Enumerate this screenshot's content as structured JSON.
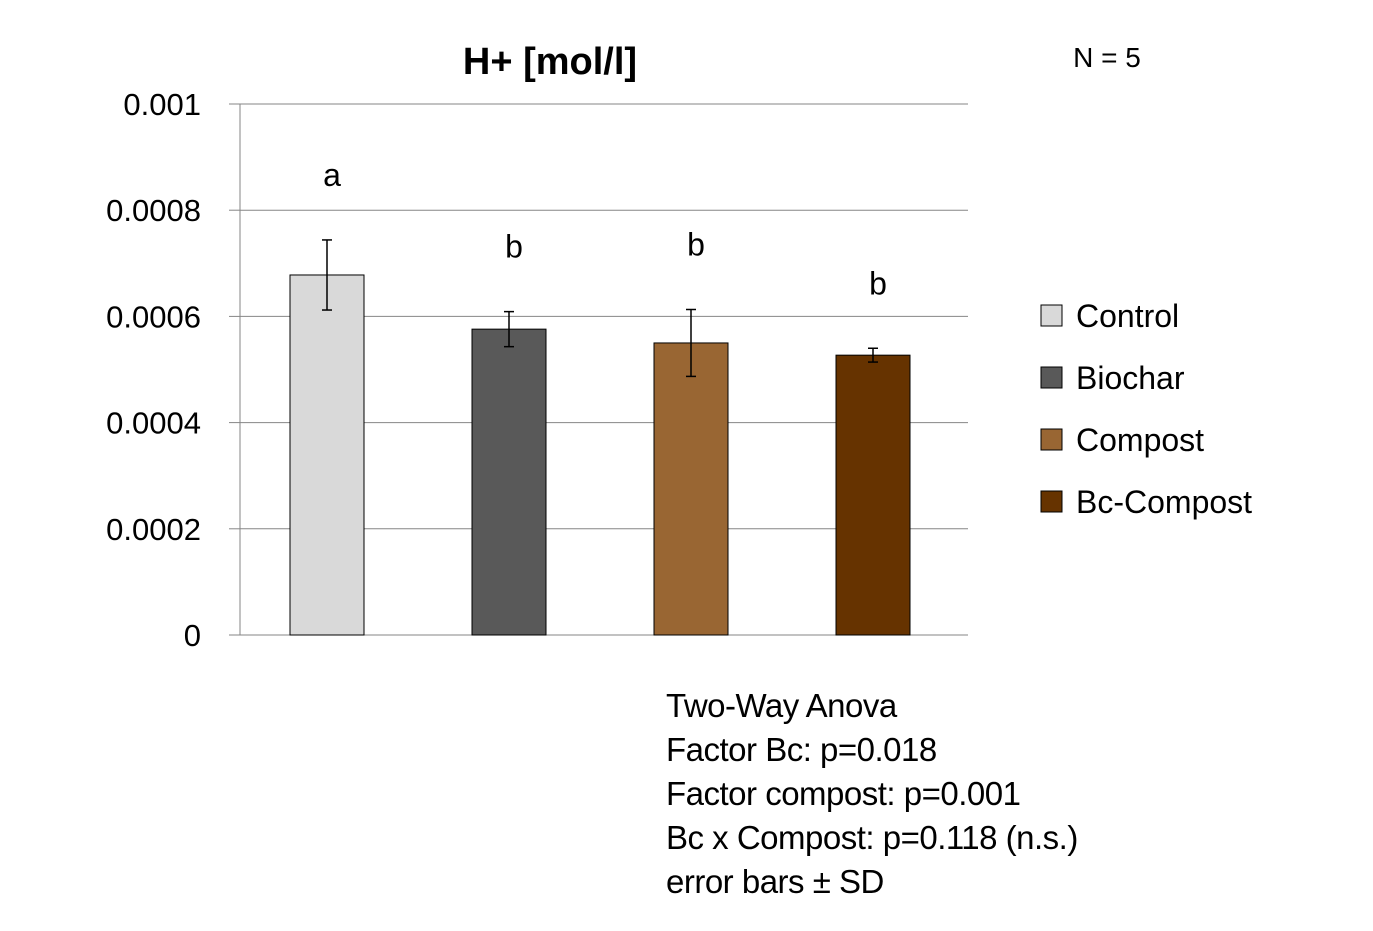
{
  "chart_data": {
    "type": "bar",
    "title": "H+ [mol/l]",
    "annotation_top_right": "N = 5",
    "categories": [
      "Control",
      "Biochar",
      "Compost",
      "Bc-Compost"
    ],
    "values": [
      0.000678,
      0.000576,
      0.00055,
      0.000527
    ],
    "error_sd": [
      6.6e-05,
      3.3e-05,
      6.3e-05,
      1.3e-05
    ],
    "significance_letters": [
      "a",
      "b",
      "b",
      "b"
    ],
    "colors": [
      "#d9d9d9",
      "#595959",
      "#996633",
      "#663300"
    ],
    "ylim": [
      0,
      0.001
    ],
    "y_ticks": [
      0,
      0.0002,
      0.0004,
      0.0006,
      0.0008,
      0.001
    ],
    "y_tick_labels": [
      "0",
      "0.0002",
      "0.0004",
      "0.0006",
      "0.0008",
      "0.001"
    ],
    "xlabel": "",
    "ylabel": "",
    "grid": true,
    "legend": {
      "placement": "right",
      "entries": [
        "Control",
        "Biochar",
        "Compost",
        "Bc-Compost"
      ]
    }
  },
  "stats_text": [
    "Two-Way Anova",
    "Factor  Bc: p=0.018",
    "Factor compost: p=0.001",
    "Bc x Compost: p=0.118 (n.s.)",
    "error bars ± SD"
  ]
}
